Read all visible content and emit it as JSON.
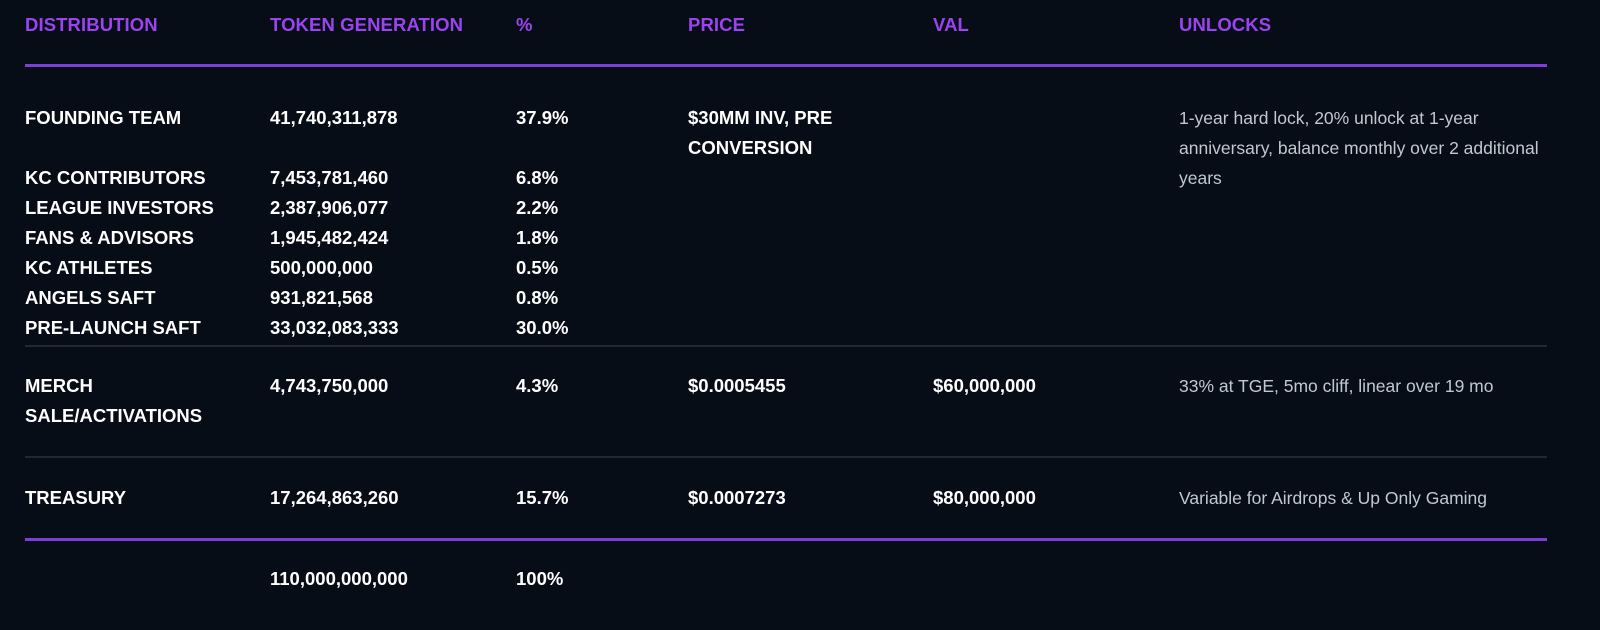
{
  "headers": {
    "distribution": "DISTRIBUTION",
    "token_generation": "TOKEN GENERATION",
    "percent": "%",
    "price": "PRICE",
    "val": "VAL",
    "unlocks": "UNLOCKS"
  },
  "group1": {
    "rows": [
      {
        "name": "FOUNDING TEAM",
        "tokens": "41,740,311,878",
        "percent": "37.9%"
      },
      {
        "name": "KC CONTRIBUTORS",
        "tokens": "7,453,781,460",
        "percent": "6.8%"
      },
      {
        "name": "LEAGUE INVESTORS",
        "tokens": "2,387,906,077",
        "percent": "2.2%"
      },
      {
        "name": "FANS & ADVISORS",
        "tokens": "1,945,482,424",
        "percent": "1.8%"
      },
      {
        "name": "KC ATHLETES",
        "tokens": "500,000,000",
        "percent": "0.5%"
      },
      {
        "name": "ANGELS SAFT",
        "tokens": "931,821,568",
        "percent": "0.8%"
      },
      {
        "name": "PRE-LAUNCH SAFT",
        "tokens": "33,032,083,333",
        "percent": "30.0%"
      }
    ],
    "price": "$30MM INV, PRE CONVERSION",
    "val": "",
    "unlocks": "1-year hard lock, 20% unlock at 1-year anniversary, balance monthly over 2 additional years"
  },
  "merch": {
    "name": "MERCH SALE/ACTIVATIONS",
    "tokens": "4,743,750,000",
    "percent": "4.3%",
    "price": "$0.0005455",
    "val": "$60,000,000",
    "unlocks": "33% at TGE, 5mo cliff, linear over 19 mo"
  },
  "treasury": {
    "name": "TREASURY",
    "tokens": "17,264,863,260",
    "percent": "15.7%",
    "price": "$0.0007273",
    "val": "$80,000,000",
    "unlocks": "Variable for Airdrops & Up Only Gaming"
  },
  "total": {
    "tokens": "110,000,000,000",
    "percent": "100%"
  },
  "colors": {
    "background": "#070d17",
    "accent_purple": "#9b43f0",
    "rule_purple": "#7b3fd7",
    "divider_grey": "#1f2933",
    "text_primary": "#ffffff",
    "text_secondary": "#c3c8ce"
  }
}
